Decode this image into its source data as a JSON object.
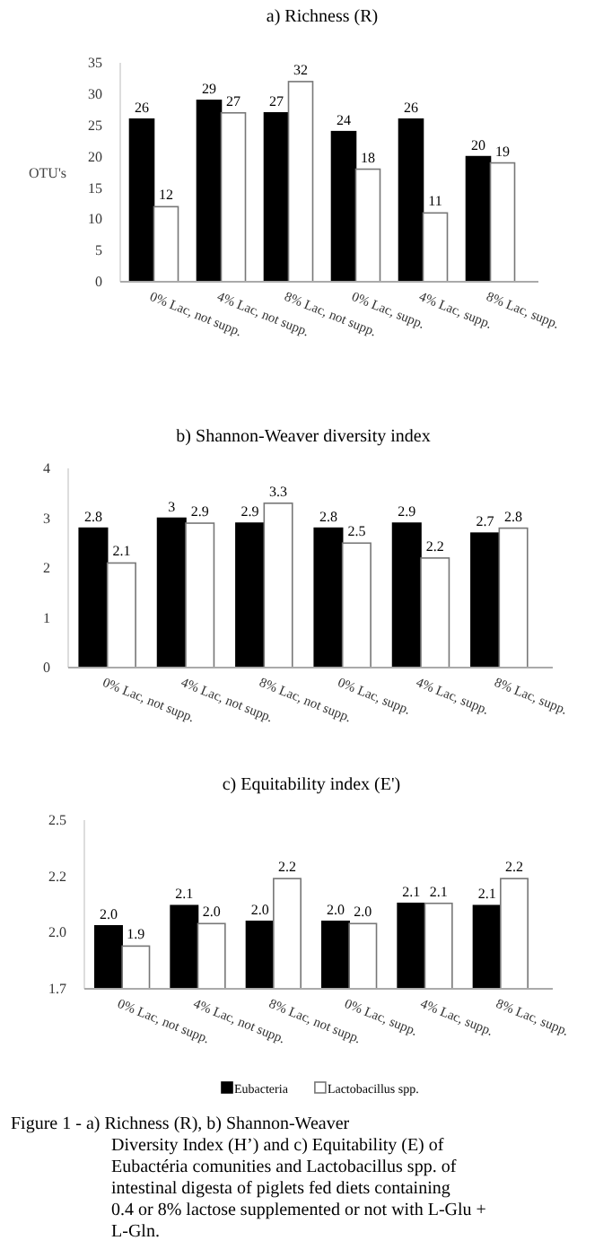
{
  "chart_data": [
    {
      "type": "bar",
      "title": "a) Richness (R)",
      "ylabel": "OTU's",
      "categories": [
        "0% Lac, not supp.",
        "4% Lac, not supp.",
        "8% Lac, not supp.",
        "0% Lac, supp.",
        "4% Lac, supp.",
        "8% Lac, supp."
      ],
      "series": [
        {
          "color": "#000000",
          "values": [
            26,
            29,
            27,
            24,
            26,
            20
          ]
        },
        {
          "color": "#ffffff",
          "values": [
            12,
            27,
            32,
            18,
            11,
            19
          ]
        }
      ],
      "ylim": [
        0,
        35
      ],
      "yticks": [
        0,
        5,
        10,
        15,
        20,
        25,
        30,
        35
      ],
      "data_labels": true,
      "grid": false,
      "legend": false
    },
    {
      "type": "bar",
      "title": "b) Shannon-Weaver diversity index",
      "categories": [
        "0% Lac, not supp.",
        "4% Lac, not supp.",
        "8% Lac, not supp.",
        "0% Lac, supp.",
        "4% Lac, supp.",
        "8% Lac, supp."
      ],
      "series": [
        {
          "color": "#000000",
          "values": [
            2.8,
            3.0,
            2.9,
            2.8,
            2.9,
            2.7
          ]
        },
        {
          "color": "#ffffff",
          "values": [
            2.1,
            2.9,
            3.3,
            2.5,
            2.2,
            2.8
          ]
        }
      ],
      "ylim": [
        0,
        4
      ],
      "yticks": [
        0,
        1,
        2,
        3,
        4
      ],
      "data_labels": true,
      "grid": false,
      "legend": false
    },
    {
      "type": "bar",
      "title": "c) Equitability index (E')",
      "categories": [
        "0% Lac, not supp.",
        "4% Lac, not supp.",
        "8% Lac, not supp.",
        "0% Lac, supp.",
        "4% Lac, supp.",
        "8% Lac, supp."
      ],
      "series": [
        {
          "name": "Eubacteria",
          "color": "#000000",
          "values": [
            2.03,
            2.12,
            2.05,
            2.05,
            2.13,
            2.12
          ],
          "value_labels": [
            "2.0",
            "2.1",
            "2.0",
            "2.0",
            "2.1",
            "2.1"
          ]
        },
        {
          "name": "Lactobacillus spp.",
          "color": "#ffffff",
          "values": [
            1.94,
            2.04,
            2.24,
            2.04,
            2.13,
            2.24
          ],
          "value_labels": [
            "1.9",
            "2.0",
            "2.2",
            "2.0",
            "2.1",
            "2.2"
          ]
        }
      ],
      "ylim": [
        1.75,
        2.5
      ],
      "yticks": [
        {
          "value": 1.75,
          "label": "1.7"
        },
        {
          "value": 2.0,
          "label": "2.0"
        },
        {
          "value": 2.25,
          "label": "2.2"
        },
        {
          "value": 2.5,
          "label": "2.5"
        }
      ],
      "grid": false,
      "legend": "bottom",
      "annotations": [
        "Figure 1 - a) Richness (R), b) Shannon-Weaver Diversity Index (H’) and c) Equitability (E) of Eubactéria comunities and Lactobacillus spp. of intestinal digesta of piglets fed diets containing 0.4 or 8% lactose supplemented or not with L-Glu + L-Gln."
      ]
    }
  ]
}
